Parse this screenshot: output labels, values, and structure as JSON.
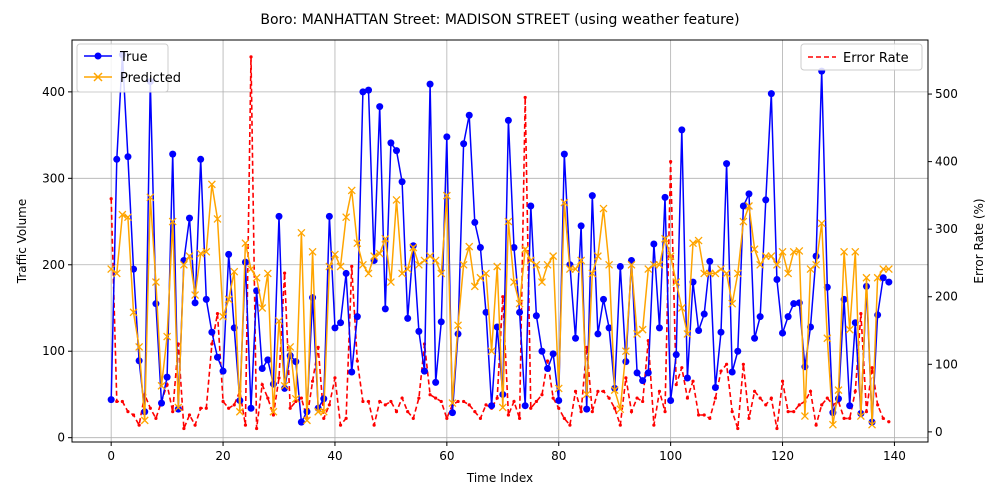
{
  "chart_data": {
    "type": "line",
    "title": "Boro: MANHATTAN Street: MADISON STREET (using weather feature)",
    "xlabel": "Time Index",
    "ylabel_left": "Traffic Volume",
    "ylabel_right": "Error Rate (%)",
    "xlim": [
      -7,
      146
    ],
    "ylim_left": [
      -5,
      460
    ],
    "ylim_right": [
      -15,
      580
    ],
    "x_ticks": [
      0,
      20,
      40,
      60,
      80,
      100,
      120,
      140
    ],
    "y_ticks_left": [
      0,
      100,
      200,
      300,
      400
    ],
    "y_ticks_right": [
      0,
      100,
      200,
      300,
      400,
      500
    ],
    "grid": true,
    "legend_left_position": "upper-left",
    "legend_right_position": "upper-right",
    "colors": {
      "true": "#0000ff",
      "predicted": "#ffa500",
      "error": "#ff0000"
    },
    "series": [
      {
        "name": "True",
        "axis": "left",
        "values": [
          44,
          322,
          443,
          325,
          195,
          89,
          30,
          412,
          155,
          40,
          70,
          328,
          33,
          205,
          254,
          156,
          322,
          160,
          122,
          93,
          77,
          212,
          127,
          43,
          203,
          34,
          170,
          80,
          90,
          62,
          256,
          57,
          95,
          88,
          18,
          30,
          162,
          34,
          45,
          256,
          127,
          133,
          190,
          76,
          140,
          400,
          402,
          205,
          383,
          149,
          341,
          332,
          296,
          138,
          222,
          123,
          77,
          409,
          64,
          134,
          348,
          29,
          120,
          340,
          373,
          249,
          220,
          145,
          37,
          128,
          50,
          367,
          220,
          145,
          37,
          268,
          141,
          100,
          80,
          97,
          43,
          328,
          200,
          115,
          245,
          33,
          280,
          120,
          160,
          127,
          57,
          198,
          88,
          205,
          75,
          66,
          75,
          224,
          127,
          278,
          43,
          96,
          356,
          69,
          180,
          124,
          143,
          204,
          58,
          122,
          317,
          76,
          100,
          268,
          282,
          115,
          140,
          275,
          398,
          183,
          121,
          140,
          155,
          156,
          82,
          128,
          210,
          424,
          174,
          29,
          45,
          160,
          37,
          133,
          28,
          175,
          18,
          142,
          185,
          180
        ]
      },
      {
        "name": "Predicted",
        "axis": "left",
        "values": [
          195,
          190,
          258,
          255,
          145,
          105,
          20,
          278,
          180,
          60,
          117,
          250,
          35,
          200,
          210,
          165,
          213,
          215,
          293,
          253,
          140,
          160,
          192,
          30,
          225,
          195,
          185,
          150,
          190,
          30,
          135,
          60,
          105,
          45,
          237,
          20,
          215,
          30,
          30,
          198,
          212,
          198,
          255,
          286,
          225,
          200,
          190,
          210,
          213,
          230,
          180,
          275,
          190,
          195,
          220,
          200,
          205,
          210,
          205,
          190,
          280,
          40,
          130,
          200,
          221,
          175,
          185,
          190,
          100,
          198,
          35,
          250,
          180,
          155,
          218,
          205,
          200,
          180,
          200,
          210,
          57,
          272,
          195,
          195,
          205,
          50,
          190,
          210,
          265,
          200,
          55,
          33,
          100,
          200,
          120,
          125,
          195,
          200,
          200,
          230,
          210,
          180,
          150,
          120,
          225,
          228,
          190,
          190,
          190,
          195,
          190,
          155,
          190,
          250,
          268,
          218,
          200,
          210,
          210,
          200,
          215,
          190,
          215,
          216,
          25,
          195,
          200,
          248,
          115,
          15,
          55,
          215,
          125,
          215,
          25,
          185,
          15,
          185,
          195,
          195
        ]
      },
      {
        "name": "Error Rate",
        "axis": "right",
        "values": [
          345,
          45,
          45,
          30,
          25,
          10,
          55,
          35,
          20,
          45,
          70,
          30,
          130,
          5,
          25,
          10,
          35,
          35,
          130,
          175,
          45,
          35,
          40,
          60,
          10,
          555,
          5,
          70,
          50,
          25,
          80,
          235,
          35,
          45,
          50,
          20,
          75,
          125,
          20,
          40,
          80,
          10,
          20,
          245,
          105,
          45,
          45,
          10,
          45,
          40,
          45,
          30,
          50,
          30,
          20,
          50,
          130,
          55,
          50,
          45,
          20,
          40,
          45,
          45,
          40,
          30,
          20,
          40,
          35,
          50,
          200,
          25,
          45,
          20,
          495,
          35,
          45,
          55,
          105,
          50,
          35,
          20,
          10,
          60,
          30,
          125,
          30,
          60,
          60,
          50,
          35,
          10,
          80,
          30,
          50,
          45,
          135,
          10,
          60,
          30,
          400,
          70,
          95,
          50,
          75,
          25,
          25,
          20,
          50,
          90,
          100,
          30,
          5,
          100,
          20,
          60,
          50,
          40,
          50,
          5,
          75,
          30,
          30,
          40,
          45,
          60,
          10,
          40,
          50,
          40,
          45,
          20,
          20,
          60,
          175,
          30,
          95,
          40,
          20,
          15
        ]
      }
    ]
  }
}
